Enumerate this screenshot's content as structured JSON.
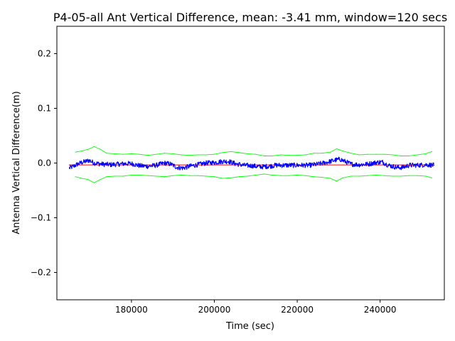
{
  "chart_data": {
    "type": "line",
    "title": "P4-05-all Ant Vertical Difference, mean: -3.41 mm, window=120 secs",
    "xlabel": "Time (sec)",
    "ylabel": "Antenna Vertical Difference(m)",
    "xlim": [
      162000,
      255500
    ],
    "ylim": [
      -0.25,
      0.25
    ],
    "x_ticks": [
      180000,
      200000,
      220000,
      240000
    ],
    "x_tick_labels": [
      "180000",
      "200000",
      "220000",
      "240000"
    ],
    "y_ticks": [
      -0.2,
      -0.1,
      0.0,
      0.1,
      0.2
    ],
    "y_tick_labels": [
      "−0.2",
      "−0.1",
      "0.0",
      "0.1",
      "0.2"
    ],
    "grid": false,
    "legend": "none",
    "colors": {
      "series": "#0000ff",
      "mean": "#ff0000",
      "bounds": "#00ff00"
    },
    "series": [
      {
        "role": "vertical-difference",
        "color": "#0000ff",
        "x": [
          165000,
          166000,
          167000,
          168000,
          169000,
          169800,
          171000,
          173000,
          175000,
          177000,
          178500,
          180000,
          182000,
          184000,
          186000,
          188000,
          189500,
          191000,
          192500,
          194000,
          196000,
          198000,
          200000,
          202000,
          203500,
          205000,
          207000,
          209000,
          211000,
          213000,
          215000,
          217000,
          219000,
          221000,
          223000,
          225000,
          227000,
          229000,
          230300,
          231500,
          233000,
          235000,
          237000,
          239000,
          240500,
          242000,
          244000,
          245500,
          247000,
          249000,
          251000,
          253000
        ],
        "y": [
          -0.009,
          -0.006,
          -0.002,
          0.001,
          0.003,
          0.005,
          0.0,
          -0.002,
          -0.003,
          -0.002,
          -0.001,
          -0.001,
          -0.005,
          -0.006,
          -0.004,
          0.0,
          -0.002,
          -0.008,
          -0.009,
          -0.006,
          -0.003,
          0.0,
          0.001,
          0.003,
          0.003,
          -0.001,
          -0.004,
          -0.005,
          -0.007,
          -0.006,
          -0.004,
          -0.004,
          -0.004,
          -0.004,
          -0.004,
          -0.002,
          0.001,
          0.005,
          0.007,
          0.003,
          -0.002,
          -0.003,
          -0.002,
          0.001,
          0.002,
          -0.004,
          -0.008,
          -0.008,
          -0.004,
          -0.004,
          -0.003,
          -0.004
        ]
      },
      {
        "role": "mean",
        "color": "#ff0000",
        "x": [
          165000,
          253000
        ],
        "y": [
          -0.00341,
          -0.00341
        ]
      },
      {
        "role": "upper-bound",
        "color": "#00ff00",
        "x": [
          166500,
          168000,
          169500,
          171000,
          172500,
          174000,
          176000,
          178000,
          180000,
          182000,
          184000,
          186000,
          188000,
          190000,
          192000,
          194000,
          196000,
          198000,
          200000,
          202000,
          204000,
          206000,
          208000,
          210000,
          212000,
          214000,
          216000,
          218000,
          220000,
          222000,
          224000,
          226000,
          228000,
          229500,
          231000,
          233000,
          235000,
          237000,
          239000,
          241000,
          243000,
          245000,
          247000,
          249000,
          251000,
          252500
        ],
        "y": [
          0.02,
          0.022,
          0.025,
          0.03,
          0.025,
          0.018,
          0.017,
          0.016,
          0.017,
          0.016,
          0.014,
          0.016,
          0.018,
          0.017,
          0.015,
          0.014,
          0.015,
          0.015,
          0.016,
          0.019,
          0.021,
          0.019,
          0.017,
          0.016,
          0.013,
          0.013,
          0.015,
          0.014,
          0.014,
          0.015,
          0.018,
          0.018,
          0.02,
          0.026,
          0.022,
          0.018,
          0.015,
          0.016,
          0.016,
          0.016,
          0.015,
          0.013,
          0.013,
          0.015,
          0.017,
          0.021
        ]
      },
      {
        "role": "lower-bound",
        "color": "#00ff00",
        "x": [
          166500,
          168000,
          169500,
          171000,
          172500,
          174000,
          176000,
          178000,
          180000,
          182000,
          184000,
          186000,
          188000,
          190000,
          192000,
          194000,
          196000,
          198000,
          200000,
          202000,
          204000,
          206000,
          208000,
          210000,
          212000,
          214000,
          216000,
          218000,
          220000,
          222000,
          224000,
          226000,
          228000,
          229500,
          231000,
          233000,
          235000,
          237000,
          239000,
          241000,
          243000,
          245000,
          247000,
          249000,
          251000,
          252500
        ],
        "y": [
          -0.025,
          -0.028,
          -0.03,
          -0.036,
          -0.03,
          -0.025,
          -0.024,
          -0.024,
          -0.022,
          -0.022,
          -0.023,
          -0.024,
          -0.025,
          -0.023,
          -0.022,
          -0.023,
          -0.023,
          -0.024,
          -0.025,
          -0.028,
          -0.027,
          -0.025,
          -0.024,
          -0.022,
          -0.02,
          -0.022,
          -0.023,
          -0.023,
          -0.022,
          -0.023,
          -0.025,
          -0.026,
          -0.028,
          -0.033,
          -0.027,
          -0.024,
          -0.024,
          -0.023,
          -0.022,
          -0.023,
          -0.024,
          -0.024,
          -0.023,
          -0.023,
          -0.024,
          -0.027
        ]
      }
    ]
  }
}
